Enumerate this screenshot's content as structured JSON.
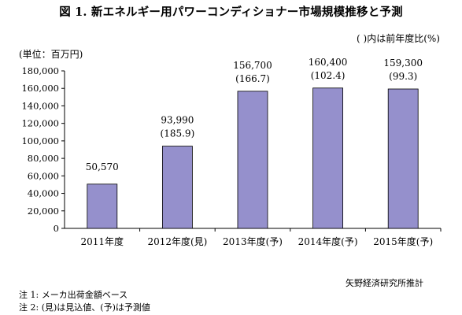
{
  "title": "図 1. 新エネルギー用パワーコンディショナー市場規模推移と予測",
  "legend_note": "( )内は前年度比(%)",
  "unit_label": "(単位：百万円)",
  "source": "矢野経済研究所推計",
  "notes": [
    "注 1:  メーカ出荷金額ベース",
    "注 2: (見)は見込値、(予)は予測値"
  ],
  "colors": {
    "bar": "#9590cc",
    "bar_edge": "#000000"
  },
  "chart_data": {
    "type": "bar",
    "title": "図 1. 新エネルギー用パワーコンディショナー市場規模推移と予測",
    "categories": [
      "2011年度",
      "2012年度(見)",
      "2013年度(予)",
      "2014年度(予)",
      "2015年度(予)"
    ],
    "values": [
      50570,
      93990,
      156700,
      160400,
      159300
    ],
    "value_labels": [
      "50,570",
      "93,990",
      "156,700",
      "160,400",
      "159,300"
    ],
    "growth_labels": [
      "",
      "(185.9)",
      "(166.7)",
      "(102.4)",
      "(99.3)"
    ],
    "ylim": [
      0,
      180000
    ],
    "yticks": [
      "0",
      "20,000",
      "40,000",
      "60,000",
      "80,000",
      "100,000",
      "120,000",
      "140,000",
      "160,000",
      "180,000"
    ],
    "grid": false,
    "xlabel": "",
    "ylabel": ""
  }
}
